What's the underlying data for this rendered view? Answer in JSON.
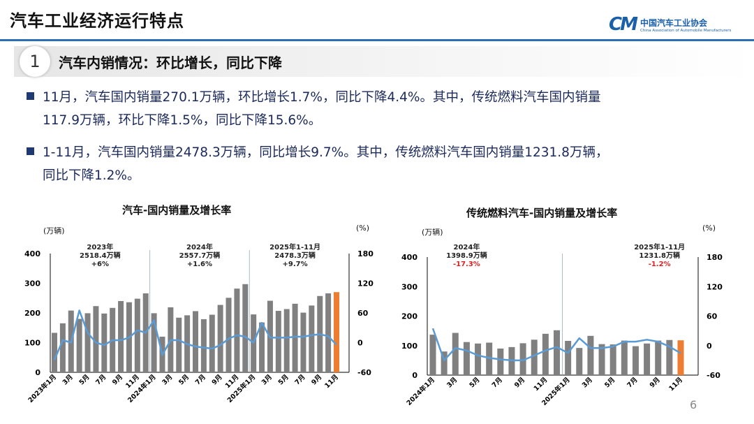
{
  "header": {
    "title": "汽车工业经济运行特点",
    "logo_cn": "中国汽车工业协会",
    "logo_en": "China Association of Automobile Manufacturers",
    "logo_mark": "CM"
  },
  "section": {
    "number": "1",
    "heading": "汽车内销情况：环比增长，同比下降"
  },
  "bullets": [
    {
      "line1": "11月，汽车国内销量270.1万辆，环比增长1.7%，同比下降4.4%。其中，传统燃料汽车国内销量",
      "line2": "117.9万辆，环比下降1.5%，同比下降15.6%。"
    },
    {
      "line1": "1-11月，汽车国内销量2478.3万辆，同比增长9.7%。其中，传统燃料汽车国内销量1231.8万辆，",
      "line2": "同比下降1.2%。"
    }
  ],
  "page_number": "6",
  "colors": {
    "bar": "#808080",
    "highlight_bar": "#ed7d31",
    "line": "#5b9bd5",
    "accent": "#2a6eb5",
    "negative": "#e02020"
  },
  "chart_data": [
    {
      "type": "bar+line",
      "title": "汽车-国内销量及增长率",
      "ylabel_left": "(万辆)",
      "ylabel_right": "(%)",
      "ylim_left": [
        0,
        400
      ],
      "ylim_right": [
        -60,
        180
      ],
      "yticks_left": [
        "0",
        "100",
        "200",
        "300",
        "400"
      ],
      "yticks_right": [
        "-60",
        "0",
        "60",
        "120",
        "180"
      ],
      "tick_labels": [
        "2023年1月",
        "3月",
        "5月",
        "7月",
        "9月",
        "11月",
        "2024年1月",
        "3月",
        "5月",
        "7月",
        "9月",
        "11月",
        "2025年1月",
        "3月",
        "5月",
        "7月",
        "9月",
        "11月"
      ],
      "series": [
        {
          "type": "bar",
          "axis": "left",
          "values": [
            133,
            165,
            208,
            180,
            199,
            223,
            198,
            217,
            240,
            236,
            248,
            266,
            199,
            120,
            219,
            184,
            192,
            206,
            179,
            194,
            227,
            251,
            282,
            297,
            195,
            168,
            241,
            207,
            213,
            231,
            201,
            225,
            257,
            266,
            270.1
          ]
        },
        {
          "type": "line",
          "axis": "right",
          "values": [
            -35,
            5,
            0,
            65,
            20,
            0,
            -5,
            5,
            5,
            10,
            25,
            20,
            45,
            -25,
            5,
            5,
            -3,
            -8,
            -10,
            -12,
            -5,
            8,
            15,
            12,
            0,
            40,
            10,
            10,
            10,
            12,
            12,
            15,
            17,
            13,
            -4.4
          ]
        }
      ],
      "annotations": [
        {
          "lines": [
            "2023年",
            "2518.4万辆",
            "+6%"
          ],
          "negative": false
        },
        {
          "lines": [
            "2024年",
            "2557.7万辆",
            "+1.6%"
          ],
          "negative": false
        },
        {
          "lines": [
            "2025年1-11月",
            "2478.3万辆",
            "+9.7%"
          ],
          "negative": false
        }
      ]
    },
    {
      "type": "bar+line",
      "title": "传统燃料汽车-国内销量及增长率",
      "ylabel_left": "(万辆)",
      "ylabel_right": "(%)",
      "ylim_left": [
        0,
        400
      ],
      "ylim_right": [
        -60,
        180
      ],
      "yticks_left": [
        "0",
        "100",
        "200",
        "300",
        "400"
      ],
      "yticks_right": [
        "-60",
        "0",
        "60",
        "120",
        "180"
      ],
      "tick_labels": [
        "2024年1月",
        "3月",
        "5月",
        "7月",
        "9月",
        "11月",
        "2025年1月",
        "3月",
        "5月",
        "7月",
        "9月",
        "11月"
      ],
      "series": [
        {
          "type": "bar",
          "axis": "left",
          "values": [
            137,
            80,
            143,
            112,
            107,
            110,
            90,
            95,
            108,
            120,
            140,
            152,
            116,
            92,
            133,
            105,
            104,
            117,
            98,
            107,
            117,
            119,
            117.9
          ]
        },
        {
          "type": "line",
          "axis": "right",
          "values": [
            35,
            -30,
            -5,
            -10,
            -20,
            -25,
            -28,
            -30,
            -30,
            -20,
            -10,
            -3,
            -15,
            15,
            -5,
            -5,
            -2,
            8,
            8,
            12,
            8,
            -2,
            -15.6
          ]
        }
      ],
      "annotations": [
        {
          "lines": [
            "2024年",
            "1398.9万辆",
            "-17.3%"
          ],
          "negative": true
        },
        {
          "lines": [
            "2025年1-11月",
            "1231.8万辆",
            "-1.2%"
          ],
          "negative": true
        }
      ]
    }
  ]
}
